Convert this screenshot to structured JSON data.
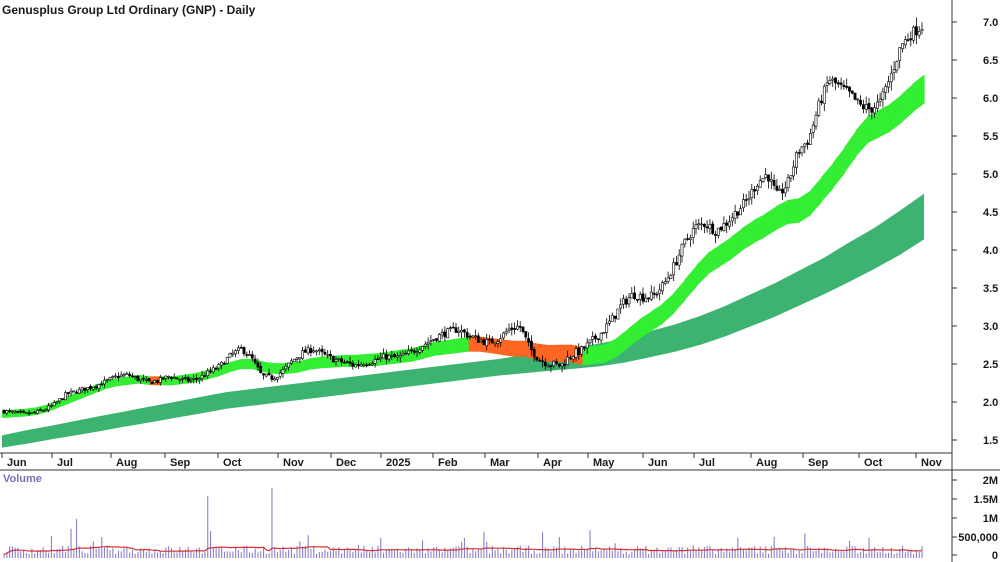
{
  "chart_data": [
    {
      "type": "candlestick",
      "title": "Genusplus Group Ltd Ordinary (GNP) - Daily",
      "x_tick_labels": [
        "Jun",
        "Jul",
        "Aug",
        "Sep",
        "Oct",
        "Nov",
        "Dec",
        "2025",
        "Feb",
        "Mar",
        "Apr",
        "May",
        "Jun",
        "Jul",
        "Aug",
        "Sep",
        "Oct",
        "Nov"
      ],
      "y_tick_labels": [
        "1.5",
        "2.0",
        "2.5",
        "3.0",
        "3.5",
        "4.0",
        "4.5",
        "5.0",
        "5.5",
        "6.0",
        "6.5",
        "7.0"
      ],
      "ylim": [
        1.2,
        7.4
      ],
      "price_close": [
        1.88,
        1.86,
        1.84,
        1.86,
        1.9,
        1.98,
        2.1,
        2.14,
        2.18,
        2.22,
        2.28,
        2.34,
        2.36,
        2.3,
        2.26,
        2.28,
        2.34,
        2.3,
        2.28,
        2.32,
        2.4,
        2.48,
        2.62,
        2.7,
        2.58,
        2.34,
        2.32,
        2.4,
        2.55,
        2.65,
        2.7,
        2.62,
        2.56,
        2.52,
        2.48,
        2.52,
        2.55,
        2.6,
        2.58,
        2.62,
        2.7,
        2.78,
        2.86,
        2.92,
        2.96,
        2.88,
        2.82,
        2.78,
        2.84,
        2.96,
        3.0,
        2.7,
        2.55,
        2.5,
        2.48,
        2.62,
        2.68,
        2.8,
        2.92,
        3.1,
        3.3,
        3.42,
        3.38,
        3.4,
        3.55,
        3.8,
        4.1,
        4.3,
        4.35,
        4.25,
        4.35,
        4.5,
        4.65,
        4.88,
        5.0,
        4.7,
        4.88,
        5.3,
        5.45,
        5.9,
        6.25,
        6.15,
        6.05,
        5.9,
        5.85,
        5.95,
        6.3,
        6.7,
        6.85,
        6.95
      ],
      "band_short_center": [
        1.84,
        1.85,
        1.86,
        1.88,
        1.92,
        1.98,
        2.04,
        2.1,
        2.16,
        2.22,
        2.26,
        2.28,
        2.3,
        2.28,
        2.28,
        2.28,
        2.3,
        2.32,
        2.36,
        2.4,
        2.46,
        2.5,
        2.5,
        2.46,
        2.44,
        2.44,
        2.46,
        2.5,
        2.52,
        2.53,
        2.54,
        2.54,
        2.55,
        2.56,
        2.58,
        2.6,
        2.62,
        2.66,
        2.7,
        2.72,
        2.74,
        2.76,
        2.76,
        2.74,
        2.72,
        2.7,
        2.7,
        2.66,
        2.64,
        2.64,
        2.64,
        2.6,
        2.62,
        2.64,
        2.72,
        2.84,
        2.96,
        3.06,
        3.16,
        3.3,
        3.48,
        3.66,
        3.82,
        3.92,
        4.02,
        4.14,
        4.24,
        4.32,
        4.42,
        4.5,
        4.52,
        4.62,
        4.8,
        4.98,
        5.18,
        5.4,
        5.58,
        5.66,
        5.74,
        5.86,
        6.0,
        6.12
      ],
      "band_short_status": [
        "up",
        "up",
        "up",
        "up",
        "up",
        "up",
        "up",
        "up",
        "up",
        "up",
        "up",
        "up",
        "up",
        "down",
        "up",
        "up",
        "up",
        "up",
        "up",
        "up",
        "up",
        "up",
        "up",
        "up",
        "up",
        "up",
        "up",
        "up",
        "up",
        "up",
        "up",
        "up",
        "up",
        "up",
        "up",
        "up",
        "up",
        "up",
        "up",
        "up",
        "up",
        "down",
        "down",
        "down",
        "down",
        "down",
        "down",
        "down",
        "down",
        "down",
        "down",
        "up",
        "up",
        "up",
        "up",
        "up",
        "up",
        "up",
        "up",
        "up",
        "up",
        "up",
        "up",
        "up",
        "up",
        "up",
        "up",
        "up",
        "up",
        "up",
        "up",
        "up",
        "up",
        "up",
        "up",
        "up",
        "up",
        "up",
        "up",
        "up",
        "up",
        "up"
      ],
      "band_long_center": [
        1.48,
        1.54,
        1.6,
        1.66,
        1.72,
        1.78,
        1.84,
        1.9,
        1.96,
        2.02,
        2.06,
        2.1,
        2.14,
        2.18,
        2.22,
        2.26,
        2.3,
        2.34,
        2.38,
        2.42,
        2.46,
        2.5,
        2.54,
        2.58,
        2.62,
        2.68,
        2.76,
        2.84,
        2.94,
        3.06,
        3.2,
        3.34,
        3.5,
        3.66,
        3.84,
        4.02,
        4.22,
        4.44
      ],
      "band_long_width": [
        0.16,
        0.18,
        0.18,
        0.19,
        0.2,
        0.2,
        0.21,
        0.21,
        0.22,
        0.22,
        0.22,
        0.22,
        0.22,
        0.22,
        0.22,
        0.22,
        0.22,
        0.22,
        0.22,
        0.22,
        0.22,
        0.24,
        0.26,
        0.28,
        0.3,
        0.32,
        0.34,
        0.36,
        0.38,
        0.4,
        0.42,
        0.44,
        0.46,
        0.48,
        0.52,
        0.54,
        0.58,
        0.6
      ],
      "volume_axis_labels": [
        "2M",
        "1.5M",
        "1M",
        "500,000",
        "0"
      ],
      "volume_label": "Volume",
      "volume_max": 2300000,
      "colors": {
        "candle": "#000000",
        "band_short_up": "#33ee33",
        "band_short_down": "#ff6622",
        "band_long": "#3cb371",
        "volume_bar": "#8a80c8",
        "volume_ma": "#d33333",
        "axis": "#333333"
      }
    }
  ]
}
